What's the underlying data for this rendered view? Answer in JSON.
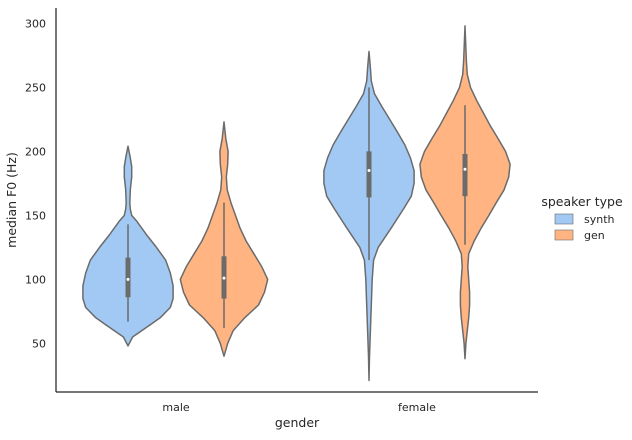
{
  "chart_data": {
    "type": "violin",
    "xlabel": "gender",
    "ylabel": "median F0 (Hz)",
    "categories": [
      "male",
      "female"
    ],
    "hue_levels": [
      "synth",
      "gen"
    ],
    "ylim": [
      12,
      312
    ],
    "yticks": [
      50,
      100,
      150,
      200,
      250,
      300
    ],
    "grid": false,
    "legend": {
      "title": "speaker type",
      "placement": "center-right",
      "items": [
        {
          "label": "synth",
          "color": "#a1c9f4"
        },
        {
          "label": "gen",
          "color": "#ffb482"
        }
      ]
    },
    "colors": {
      "synth": "#a1c9f4",
      "gen": "#ffb482",
      "outline": "#6b6b6b",
      "axis": "#262626"
    },
    "violins": [
      {
        "category": "male",
        "hue": "synth",
        "min": 48,
        "max": 204,
        "q1": 86,
        "median": 100,
        "q3": 117,
        "whisker_low": 67,
        "whisker_high": 143,
        "profile": [
          [
            48,
            0.0
          ],
          [
            55,
            0.1
          ],
          [
            60,
            0.3
          ],
          [
            65,
            0.5
          ],
          [
            70,
            0.7
          ],
          [
            78,
            0.92
          ],
          [
            85,
            0.98
          ],
          [
            95,
            0.98
          ],
          [
            105,
            0.92
          ],
          [
            115,
            0.82
          ],
          [
            125,
            0.62
          ],
          [
            135,
            0.4
          ],
          [
            145,
            0.2
          ],
          [
            150,
            0.08
          ],
          [
            155,
            0.05
          ],
          [
            160,
            0.04
          ],
          [
            170,
            0.05
          ],
          [
            180,
            0.08
          ],
          [
            188,
            0.08
          ],
          [
            195,
            0.05
          ],
          [
            204,
            0.0
          ]
        ]
      },
      {
        "category": "male",
        "hue": "gen",
        "min": 40,
        "max": 223,
        "q1": 85,
        "median": 101,
        "q3": 118,
        "whisker_low": 62,
        "whisker_high": 160,
        "profile": [
          [
            40,
            0.0
          ],
          [
            50,
            0.08
          ],
          [
            60,
            0.2
          ],
          [
            70,
            0.45
          ],
          [
            80,
            0.75
          ],
          [
            90,
            0.88
          ],
          [
            100,
            0.95
          ],
          [
            110,
            0.82
          ],
          [
            120,
            0.65
          ],
          [
            130,
            0.48
          ],
          [
            140,
            0.35
          ],
          [
            150,
            0.25
          ],
          [
            160,
            0.15
          ],
          [
            170,
            0.07
          ],
          [
            180,
            0.05
          ],
          [
            190,
            0.08
          ],
          [
            200,
            0.09
          ],
          [
            210,
            0.04
          ],
          [
            223,
            0.0
          ]
        ]
      },
      {
        "category": "female",
        "hue": "synth",
        "min": 21,
        "max": 278,
        "q1": 164,
        "median": 185,
        "q3": 200,
        "whisker_low": 115,
        "whisker_high": 250,
        "profile": [
          [
            21,
            0.0
          ],
          [
            40,
            0.01
          ],
          [
            60,
            0.03
          ],
          [
            80,
            0.05
          ],
          [
            100,
            0.07
          ],
          [
            115,
            0.1
          ],
          [
            125,
            0.2
          ],
          [
            140,
            0.48
          ],
          [
            155,
            0.75
          ],
          [
            165,
            0.92
          ],
          [
            175,
            0.98
          ],
          [
            185,
            0.98
          ],
          [
            195,
            0.9
          ],
          [
            205,
            0.78
          ],
          [
            215,
            0.62
          ],
          [
            225,
            0.45
          ],
          [
            235,
            0.28
          ],
          [
            245,
            0.12
          ],
          [
            255,
            0.05
          ],
          [
            265,
            0.03
          ],
          [
            278,
            0.0
          ]
        ]
      },
      {
        "category": "female",
        "hue": "gen",
        "min": 38,
        "max": 298,
        "q1": 165,
        "median": 186,
        "q3": 198,
        "whisker_low": 127,
        "whisker_high": 236,
        "profile": [
          [
            38,
            0.0
          ],
          [
            50,
            0.02
          ],
          [
            60,
            0.05
          ],
          [
            70,
            0.08
          ],
          [
            80,
            0.1
          ],
          [
            90,
            0.1
          ],
          [
            100,
            0.08
          ],
          [
            110,
            0.06
          ],
          [
            120,
            0.08
          ],
          [
            130,
            0.2
          ],
          [
            140,
            0.35
          ],
          [
            150,
            0.52
          ],
          [
            160,
            0.68
          ],
          [
            170,
            0.85
          ],
          [
            180,
            0.95
          ],
          [
            190,
            0.98
          ],
          [
            200,
            0.88
          ],
          [
            210,
            0.72
          ],
          [
            220,
            0.55
          ],
          [
            230,
            0.4
          ],
          [
            240,
            0.25
          ],
          [
            250,
            0.12
          ],
          [
            260,
            0.05
          ],
          [
            270,
            0.03
          ],
          [
            280,
            0.02
          ],
          [
            298,
            0.0
          ]
        ]
      }
    ]
  }
}
